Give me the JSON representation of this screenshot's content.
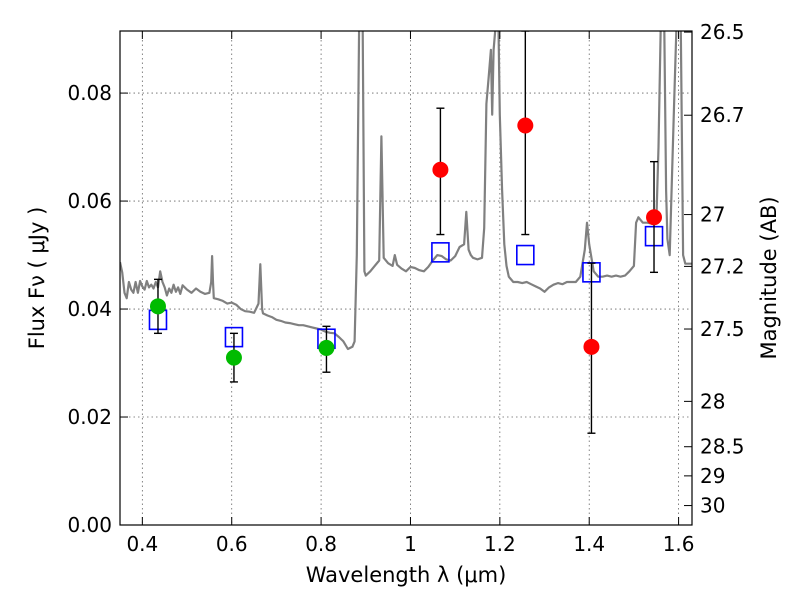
{
  "chart_data": {
    "type": "scatter",
    "title": "",
    "xlabel": "Wavelength  λ (μm)",
    "ylabel": "Flux  Fν  ( μJy )",
    "ylabel_right": "Magnitude (AB)",
    "xlim": [
      0.35,
      1.63
    ],
    "ylim": [
      0.0,
      0.0915
    ],
    "grid": true,
    "x_ticks": [
      {
        "value": 0.4,
        "label": "0.4"
      },
      {
        "value": 0.6,
        "label": "0.6"
      },
      {
        "value": 0.8,
        "label": "0.8"
      },
      {
        "value": 1.0,
        "label": "1"
      },
      {
        "value": 1.2,
        "label": "1.2"
      },
      {
        "value": 1.4,
        "label": "1.4"
      },
      {
        "value": 1.6,
        "label": "1.6"
      }
    ],
    "y_ticks": [
      {
        "value": 0.0,
        "label": "0.00"
      },
      {
        "value": 0.02,
        "label": "0.02"
      },
      {
        "value": 0.04,
        "label": "0.04"
      },
      {
        "value": 0.06,
        "label": "0.06"
      },
      {
        "value": 0.08,
        "label": "0.08"
      }
    ],
    "right_ticks": [
      {
        "label": "26.5",
        "flux": 0.0913
      },
      {
        "label": "26.7",
        "flux": 0.0759
      },
      {
        "label": "27",
        "flux": 0.0575
      },
      {
        "label": "27.2",
        "flux": 0.0479
      },
      {
        "label": "27.5",
        "flux": 0.0363
      },
      {
        "label": "28",
        "flux": 0.0229
      },
      {
        "label": "28.5",
        "flux": 0.0145
      },
      {
        "label": "29",
        "flux": 0.0091
      },
      {
        "label": "30",
        "flux": 0.0036
      }
    ],
    "colors": {
      "sed": "#808080",
      "model_box": "#0000ff",
      "green": "#00bb00",
      "red": "#ff0000",
      "errorbar": "#000000",
      "grid": "#666666"
    },
    "series": [
      {
        "kind": "line",
        "points": [
          [
            0.35,
            0.0487
          ],
          [
            0.355,
            0.0468
          ],
          [
            0.36,
            0.043
          ],
          [
            0.365,
            0.042
          ],
          [
            0.37,
            0.045
          ],
          [
            0.375,
            0.0436
          ],
          [
            0.38,
            0.043
          ],
          [
            0.385,
            0.045
          ],
          [
            0.39,
            0.043
          ],
          [
            0.395,
            0.0452
          ],
          [
            0.4,
            0.0442
          ],
          [
            0.405,
            0.0436
          ],
          [
            0.41,
            0.0452
          ],
          [
            0.415,
            0.044
          ],
          [
            0.42,
            0.0445
          ],
          [
            0.425,
            0.0438
          ],
          [
            0.43,
            0.045
          ],
          [
            0.435,
            0.044
          ],
          [
            0.44,
            0.047
          ],
          [
            0.445,
            0.045
          ],
          [
            0.45,
            0.044
          ],
          [
            0.455,
            0.0425
          ],
          [
            0.46,
            0.0438
          ],
          [
            0.465,
            0.043
          ],
          [
            0.47,
            0.0445
          ],
          [
            0.475,
            0.0432
          ],
          [
            0.48,
            0.044
          ],
          [
            0.485,
            0.0428
          ],
          [
            0.49,
            0.0444
          ],
          [
            0.5,
            0.0436
          ],
          [
            0.51,
            0.043
          ],
          [
            0.52,
            0.0438
          ],
          [
            0.53,
            0.0432
          ],
          [
            0.54,
            0.0428
          ],
          [
            0.55,
            0.043
          ],
          [
            0.554,
            0.045
          ],
          [
            0.556,
            0.0498
          ],
          [
            0.558,
            0.045
          ],
          [
            0.56,
            0.042
          ],
          [
            0.57,
            0.0418
          ],
          [
            0.58,
            0.0415
          ],
          [
            0.59,
            0.041
          ],
          [
            0.6,
            0.0412
          ],
          [
            0.61,
            0.0408
          ],
          [
            0.62,
            0.04
          ],
          [
            0.63,
            0.0396
          ],
          [
            0.64,
            0.0395
          ],
          [
            0.65,
            0.0393
          ],
          [
            0.66,
            0.041
          ],
          [
            0.664,
            0.0483
          ],
          [
            0.668,
            0.04
          ],
          [
            0.67,
            0.0392
          ],
          [
            0.68,
            0.0388
          ],
          [
            0.69,
            0.0385
          ],
          [
            0.7,
            0.038
          ],
          [
            0.71,
            0.0378
          ],
          [
            0.72,
            0.0375
          ],
          [
            0.73,
            0.0374
          ],
          [
            0.74,
            0.0372
          ],
          [
            0.75,
            0.037
          ],
          [
            0.76,
            0.037
          ],
          [
            0.77,
            0.0368
          ],
          [
            0.78,
            0.0366
          ],
          [
            0.79,
            0.0364
          ],
          [
            0.8,
            0.0362
          ],
          [
            0.81,
            0.0358
          ],
          [
            0.82,
            0.0356
          ],
          [
            0.83,
            0.0355
          ],
          [
            0.84,
            0.0348
          ],
          [
            0.85,
            0.034
          ],
          [
            0.86,
            0.0326
          ],
          [
            0.87,
            0.033
          ],
          [
            0.875,
            0.034
          ],
          [
            0.88,
            0.05
          ],
          [
            0.885,
            0.092
          ],
          [
            0.893,
            0.092
          ],
          [
            0.897,
            0.047
          ],
          [
            0.9,
            0.0462
          ],
          [
            0.91,
            0.047
          ],
          [
            0.92,
            0.048
          ],
          [
            0.93,
            0.049
          ],
          [
            0.935,
            0.072
          ],
          [
            0.94,
            0.0495
          ],
          [
            0.95,
            0.0485
          ],
          [
            0.96,
            0.048
          ],
          [
            0.965,
            0.05
          ],
          [
            0.97,
            0.0482
          ],
          [
            0.98,
            0.0475
          ],
          [
            0.99,
            0.047
          ],
          [
            1.0,
            0.0478
          ],
          [
            1.01,
            0.0476
          ],
          [
            1.02,
            0.0472
          ],
          [
            1.03,
            0.047
          ],
          [
            1.04,
            0.0478
          ],
          [
            1.05,
            0.049
          ],
          [
            1.06,
            0.05
          ],
          [
            1.07,
            0.0498
          ],
          [
            1.08,
            0.0492
          ],
          [
            1.09,
            0.049
          ],
          [
            1.1,
            0.0498
          ],
          [
            1.11,
            0.0515
          ],
          [
            1.12,
            0.052
          ],
          [
            1.125,
            0.058
          ],
          [
            1.13,
            0.051
          ],
          [
            1.135,
            0.05
          ],
          [
            1.14,
            0.0495
          ],
          [
            1.15,
            0.0492
          ],
          [
            1.16,
            0.0495
          ],
          [
            1.165,
            0.055
          ],
          [
            1.17,
            0.078
          ],
          [
            1.175,
            0.083
          ],
          [
            1.18,
            0.088
          ],
          [
            1.183,
            0.076
          ],
          [
            1.186,
            0.088
          ],
          [
            1.19,
            0.092
          ],
          [
            1.197,
            0.092
          ],
          [
            1.2,
            0.076
          ],
          [
            1.205,
            0.062
          ],
          [
            1.21,
            0.052
          ],
          [
            1.215,
            0.048
          ],
          [
            1.22,
            0.046
          ],
          [
            1.23,
            0.045
          ],
          [
            1.24,
            0.045
          ],
          [
            1.25,
            0.0448
          ],
          [
            1.26,
            0.045
          ],
          [
            1.27,
            0.0446
          ],
          [
            1.28,
            0.0442
          ],
          [
            1.29,
            0.0438
          ],
          [
            1.3,
            0.0432
          ],
          [
            1.31,
            0.044
          ],
          [
            1.32,
            0.0445
          ],
          [
            1.33,
            0.0448
          ],
          [
            1.34,
            0.0446
          ],
          [
            1.35,
            0.045
          ],
          [
            1.36,
            0.045
          ],
          [
            1.37,
            0.045
          ],
          [
            1.38,
            0.046
          ],
          [
            1.39,
            0.051
          ],
          [
            1.395,
            0.056
          ],
          [
            1.4,
            0.052
          ],
          [
            1.41,
            0.047
          ],
          [
            1.42,
            0.046
          ],
          [
            1.43,
            0.046
          ],
          [
            1.44,
            0.0462
          ],
          [
            1.45,
            0.046
          ],
          [
            1.46,
            0.0462
          ],
          [
            1.47,
            0.046
          ],
          [
            1.48,
            0.0462
          ],
          [
            1.49,
            0.047
          ],
          [
            1.5,
            0.048
          ],
          [
            1.505,
            0.056
          ],
          [
            1.51,
            0.057
          ],
          [
            1.52,
            0.056
          ],
          [
            1.53,
            0.056
          ],
          [
            1.54,
            0.0558
          ],
          [
            1.55,
            0.056
          ],
          [
            1.555,
            0.07
          ],
          [
            1.56,
            0.092
          ],
          [
            1.568,
            0.092
          ],
          [
            1.572,
            0.062
          ],
          [
            1.575,
            0.053
          ],
          [
            1.58,
            0.05
          ],
          [
            1.59,
            0.078
          ],
          [
            1.595,
            0.092
          ],
          [
            1.605,
            0.092
          ],
          [
            1.61,
            0.05
          ],
          [
            1.615,
            0.0484
          ],
          [
            1.63,
            0.0484
          ]
        ]
      },
      {
        "kind": "model-box",
        "points": [
          {
            "x": 0.435,
            "y": 0.038
          },
          {
            "x": 0.605,
            "y": 0.0348
          },
          {
            "x": 0.812,
            "y": 0.0345
          },
          {
            "x": 1.067,
            "y": 0.0505
          },
          {
            "x": 1.257,
            "y": 0.05
          },
          {
            "x": 1.405,
            "y": 0.0468
          },
          {
            "x": 1.545,
            "y": 0.0535
          }
        ]
      },
      {
        "kind": "observed",
        "points": [
          {
            "x": 0.435,
            "y": 0.0405,
            "err_lo": 0.0355,
            "err_hi": 0.0455,
            "color": "green"
          },
          {
            "x": 0.605,
            "y": 0.031,
            "err_lo": 0.0265,
            "err_hi": 0.0355,
            "color": "green"
          },
          {
            "x": 0.812,
            "y": 0.0328,
            "err_lo": 0.0283,
            "err_hi": 0.0368,
            "color": "green"
          },
          {
            "x": 1.067,
            "y": 0.0658,
            "err_lo": 0.0538,
            "err_hi": 0.0772,
            "color": "red"
          },
          {
            "x": 1.257,
            "y": 0.074,
            "err_lo": 0.0538,
            "err_hi": 0.0915,
            "color": "red"
          },
          {
            "x": 1.405,
            "y": 0.033,
            "err_lo": 0.017,
            "err_hi": 0.0485,
            "color": "red"
          },
          {
            "x": 1.545,
            "y": 0.057,
            "err_lo": 0.0468,
            "err_hi": 0.0673,
            "color": "red"
          }
        ]
      }
    ]
  }
}
